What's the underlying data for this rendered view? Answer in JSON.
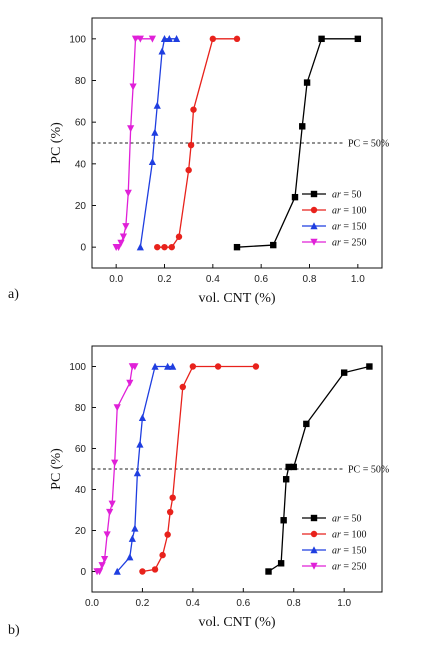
{
  "chart_data": [
    {
      "type": "line",
      "panel_label": "a)",
      "xlabel": "vol. CNT (%)",
      "ylabel": "PC (%)",
      "xlim": [
        -0.1,
        1.1
      ],
      "ylim": [
        -10,
        110
      ],
      "xticks": [
        "0.0",
        "0.2",
        "0.4",
        "0.6",
        "0.8",
        "1.0"
      ],
      "xtick_values": [
        0.0,
        0.2,
        0.4,
        0.6,
        0.8,
        1.0
      ],
      "yticks": [
        "0",
        "20",
        "40",
        "60",
        "80",
        "100"
      ],
      "ytick_values": [
        0,
        20,
        40,
        60,
        80,
        100
      ],
      "reference_line": {
        "y": 50,
        "label": "PC = 50%"
      },
      "legend_position": "lower-right",
      "series": [
        {
          "name": "ar = 50",
          "color": "#000000",
          "marker": "square",
          "x": [
            0.5,
            0.65,
            0.74,
            0.77,
            0.79,
            0.85,
            1.0
          ],
          "y": [
            0,
            1,
            24,
            58,
            79,
            100,
            100
          ]
        },
        {
          "name": "ar = 100",
          "color": "#e8221c",
          "marker": "circle",
          "x": [
            0.17,
            0.2,
            0.23,
            0.26,
            0.3,
            0.31,
            0.32,
            0.4,
            0.5
          ],
          "y": [
            0,
            0,
            0,
            5,
            37,
            49,
            66,
            100,
            100
          ]
        },
        {
          "name": "ar = 150",
          "color": "#1f3ee0",
          "marker": "triangle-up",
          "x": [
            0.1,
            0.15,
            0.16,
            0.17,
            0.19,
            0.2,
            0.22,
            0.25
          ],
          "y": [
            0,
            41,
            55,
            68,
            94,
            100,
            100,
            100
          ]
        },
        {
          "name": "ar = 250",
          "color": "#e020d8",
          "marker": "triangle-down",
          "x": [
            0.0,
            0.01,
            0.02,
            0.03,
            0.04,
            0.05,
            0.06,
            0.07,
            0.08,
            0.1,
            0.15
          ],
          "y": [
            0,
            0,
            2,
            5,
            10,
            26,
            57,
            77,
            100,
            100,
            100
          ]
        }
      ]
    },
    {
      "type": "line",
      "panel_label": "b)",
      "xlabel": "vol. CNT (%)",
      "ylabel": "PC (%)",
      "xlim": [
        0.0,
        1.15
      ],
      "ylim": [
        -10,
        110
      ],
      "xticks": [
        "0.0",
        "0.2",
        "0.4",
        "0.6",
        "0.8",
        "1.0"
      ],
      "xtick_values": [
        0.0,
        0.2,
        0.4,
        0.6,
        0.8,
        1.0
      ],
      "yticks": [
        "0",
        "20",
        "40",
        "60",
        "80",
        "100"
      ],
      "ytick_values": [
        0,
        20,
        40,
        60,
        80,
        100
      ],
      "reference_line": {
        "y": 50,
        "label": "PC = 50%"
      },
      "legend_position": "lower-right",
      "series": [
        {
          "name": "ar = 50",
          "color": "#000000",
          "marker": "square",
          "x": [
            0.7,
            0.75,
            0.76,
            0.77,
            0.78,
            0.8,
            0.85,
            1.0,
            1.1
          ],
          "y": [
            0,
            4,
            25,
            45,
            51,
            51,
            72,
            97,
            100
          ]
        },
        {
          "name": "ar = 100",
          "color": "#e8221c",
          "marker": "circle",
          "x": [
            0.2,
            0.25,
            0.28,
            0.3,
            0.31,
            0.32,
            0.36,
            0.4,
            0.5,
            0.65
          ],
          "y": [
            0,
            1,
            8,
            18,
            29,
            36,
            90,
            100,
            100,
            100
          ]
        },
        {
          "name": "ar = 150",
          "color": "#1f3ee0",
          "marker": "triangle-up",
          "x": [
            0.1,
            0.15,
            0.16,
            0.17,
            0.18,
            0.19,
            0.2,
            0.25,
            0.3,
            0.32
          ],
          "y": [
            0,
            7,
            16,
            21,
            48,
            62,
            75,
            100,
            100,
            100
          ]
        },
        {
          "name": "ar = 250",
          "color": "#e020d8",
          "marker": "triangle-down",
          "x": [
            0.02,
            0.03,
            0.04,
            0.05,
            0.06,
            0.07,
            0.08,
            0.09,
            0.1,
            0.15,
            0.16,
            0.17
          ],
          "y": [
            0,
            0,
            3,
            6,
            18,
            29,
            33,
            53,
            80,
            92,
            100,
            100
          ]
        }
      ]
    }
  ]
}
